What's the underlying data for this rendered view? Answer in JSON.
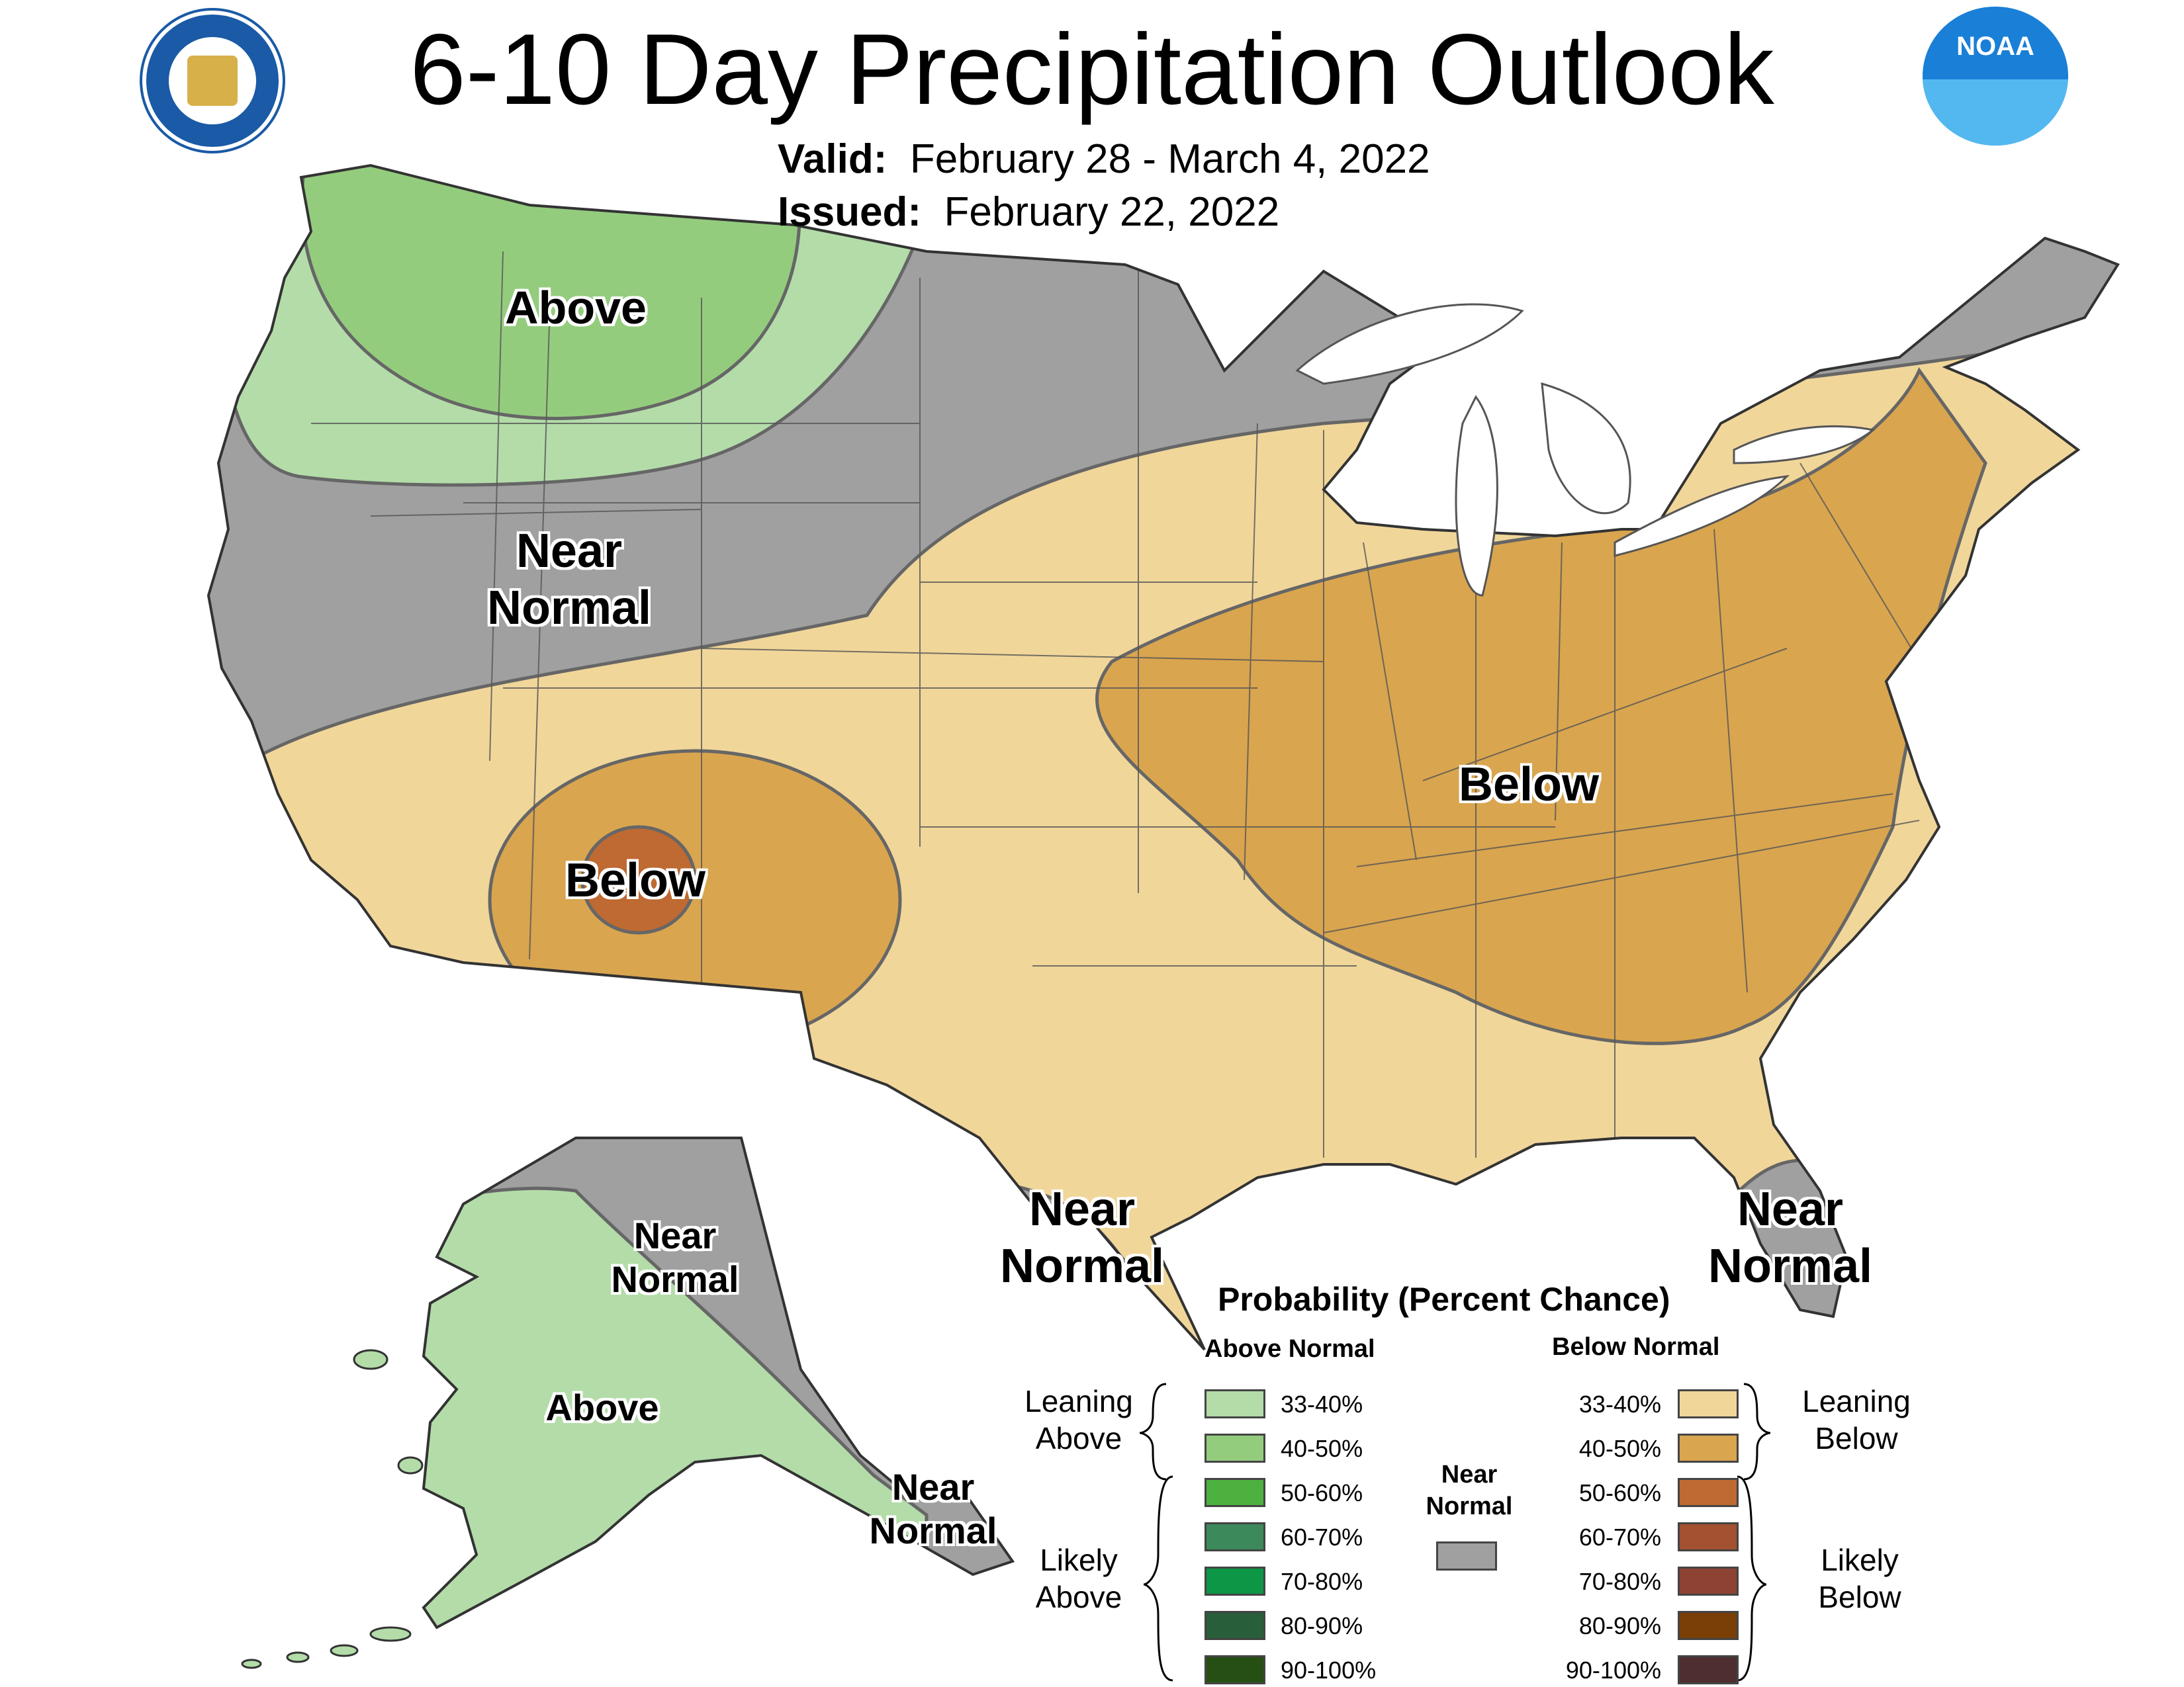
{
  "title": "6-10 Day Precipitation Outlook",
  "valid": {
    "label": "Valid:",
    "value": "February 28 - March 4, 2022"
  },
  "issued": {
    "label": "Issued:",
    "value": "February 22, 2022"
  },
  "logos": {
    "left": "department-of-commerce-seal",
    "right": "noaa-logo",
    "noaa_text": "NOAA"
  },
  "map_labels": {
    "above_nw": "Above",
    "near_normal_nw": [
      "Near",
      "Normal"
    ],
    "below_sw": "Below",
    "below_east": "Below",
    "near_normal_tx": [
      "Near",
      "Normal"
    ],
    "near_normal_fl": [
      "Near",
      "Normal"
    ],
    "near_normal_ak_north": [
      "Near",
      "Normal"
    ],
    "above_ak": "Above",
    "near_normal_ak_south": [
      "Near",
      "Normal"
    ]
  },
  "legend": {
    "title": "Probability (Percent Chance)",
    "above_header": "Above Normal",
    "below_header": "Below Normal",
    "near_header": [
      "Near",
      "Normal"
    ],
    "above_entries": [
      {
        "label": "33-40%",
        "color": "#b3dca9"
      },
      {
        "label": "40-50%",
        "color": "#94cc7e"
      },
      {
        "label": "50-60%",
        "color": "#4db13f"
      },
      {
        "label": "60-70%",
        "color": "#3c8a5c"
      },
      {
        "label": "70-80%",
        "color": "#0c9645"
      },
      {
        "label": "80-90%",
        "color": "#285e3a"
      },
      {
        "label": "90-100%",
        "color": "#264f13"
      }
    ],
    "below_entries": [
      {
        "label": "33-40%",
        "color": "#f1d69a"
      },
      {
        "label": "40-50%",
        "color": "#d9a54f"
      },
      {
        "label": "50-60%",
        "color": "#be6a32"
      },
      {
        "label": "60-70%",
        "color": "#a35130"
      },
      {
        "label": "70-80%",
        "color": "#8d4233"
      },
      {
        "label": "80-90%",
        "color": "#7a3f07"
      },
      {
        "label": "90-100%",
        "color": "#4e2e30"
      }
    ],
    "near_color": "#a0a0a0",
    "leaning_above": [
      "Leaning",
      "Above"
    ],
    "likely_above": [
      "Likely",
      "Above"
    ],
    "leaning_below": [
      "Leaning",
      "Below"
    ],
    "likely_below": [
      "Likely",
      "Below"
    ]
  }
}
